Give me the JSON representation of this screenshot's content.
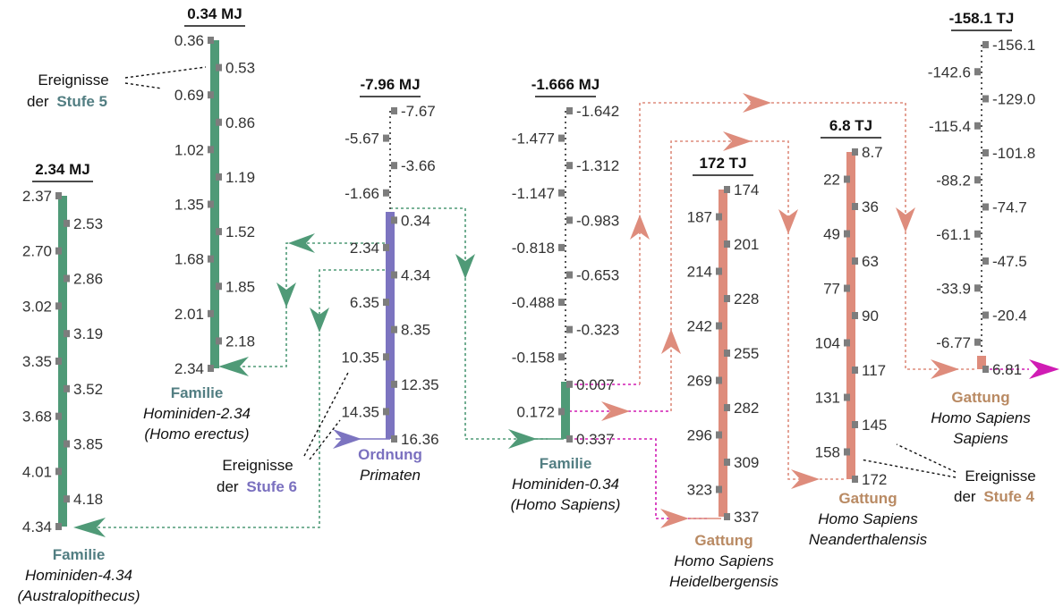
{
  "colors": {
    "green": "#4f9a77",
    "purple": "#7c74c0",
    "salmon": "#de8c7c",
    "magenta": "#d01cb4",
    "stub": "#7d7d7d",
    "label_green": "#527e82",
    "label_purple": "#7a70bf",
    "label_brown": "#b98a63"
  },
  "columns": {
    "hom434": {
      "header": "2.34 MJ",
      "left_values": [
        "2.37",
        "2.70",
        "3.02",
        "3.35",
        "3.68",
        "4.01",
        "4.34"
      ],
      "right_values": [
        "2.53",
        "2.86",
        "3.19",
        "3.52",
        "3.85",
        "4.18"
      ],
      "caption": {
        "line1": "Familie",
        "line2": "Hominiden-4.34",
        "line3": "(Australopithecus)"
      }
    },
    "hom234": {
      "header": "0.34 MJ",
      "left_values": [
        "0.36",
        "0.69",
        "1.02",
        "1.35",
        "1.68",
        "2.01",
        "2.34"
      ],
      "right_values": [
        "0.53",
        "0.86",
        "1.19",
        "1.52",
        "1.85",
        "2.18"
      ],
      "caption": {
        "line1": "Familie",
        "line2": "Hominiden-2.34",
        "line3": "(Homo erectus)"
      }
    },
    "primaten": {
      "header": "-7.96 MJ",
      "left_values": [
        "-5.67",
        "-1.66",
        "2.34",
        "6.35",
        "10.35",
        "14.35"
      ],
      "right_values": [
        "-7.67",
        "-3.66",
        "0.34",
        "4.34",
        "8.35",
        "12.35",
        "16.36"
      ],
      "caption": {
        "line1": "Ordnung",
        "line2": "Primaten"
      }
    },
    "hom034": {
      "header": "-1.666 MJ",
      "left_values": [
        "-1.477",
        "-1.147",
        "-0.818",
        "-0.488",
        "-0.158",
        "0.172"
      ],
      "right_values": [
        "-1.642",
        "-1.312",
        "-0.983",
        "-0.653",
        "-0.323",
        "0.007",
        "0.337"
      ],
      "caption": {
        "line1": "Familie",
        "line2": "Hominiden-0.34",
        "line3": "(Homo Sapiens)"
      }
    },
    "heidel": {
      "header": "172 TJ",
      "left_values": [
        "187",
        "214",
        "242",
        "269",
        "296",
        "323"
      ],
      "right_values": [
        "174",
        "201",
        "228",
        "255",
        "282",
        "309",
        "337"
      ],
      "caption": {
        "line1": "Gattung",
        "line2": "Homo Sapiens",
        "line3": "Heidelbergensis"
      }
    },
    "neander": {
      "header": "6.8 TJ",
      "left_values": [
        "22",
        "49",
        "77",
        "104",
        "131",
        "158"
      ],
      "right_values": [
        "8.7",
        "36",
        "63",
        "90",
        "117",
        "145",
        "172"
      ],
      "caption": {
        "line1": "Gattung",
        "line2": "Homo Sapiens",
        "line3": "Neanderthalensis"
      }
    },
    "sapiens": {
      "header": "-158.1 TJ",
      "left_values": [
        "-142.6",
        "-115.4",
        "-88.2",
        "-61.1",
        "-33.9",
        "-6.77"
      ],
      "right_values": [
        "-156.1",
        "-129.0",
        "-101.8",
        "-74.7",
        "-47.5",
        "-20.4",
        "6.81"
      ],
      "caption": {
        "line1": "Gattung",
        "line2": "Homo Sapiens",
        "line3": "Sapiens"
      }
    }
  },
  "annotations": {
    "stufe5": {
      "word": "Ereignisse",
      "prefix": "der",
      "level": "Stufe 5"
    },
    "stufe6": {
      "word": "Ereignisse",
      "prefix": "der",
      "level": "Stufe 6"
    },
    "stufe4": {
      "word": "Ereignisse",
      "prefix": "der",
      "level": "Stufe 4"
    }
  }
}
